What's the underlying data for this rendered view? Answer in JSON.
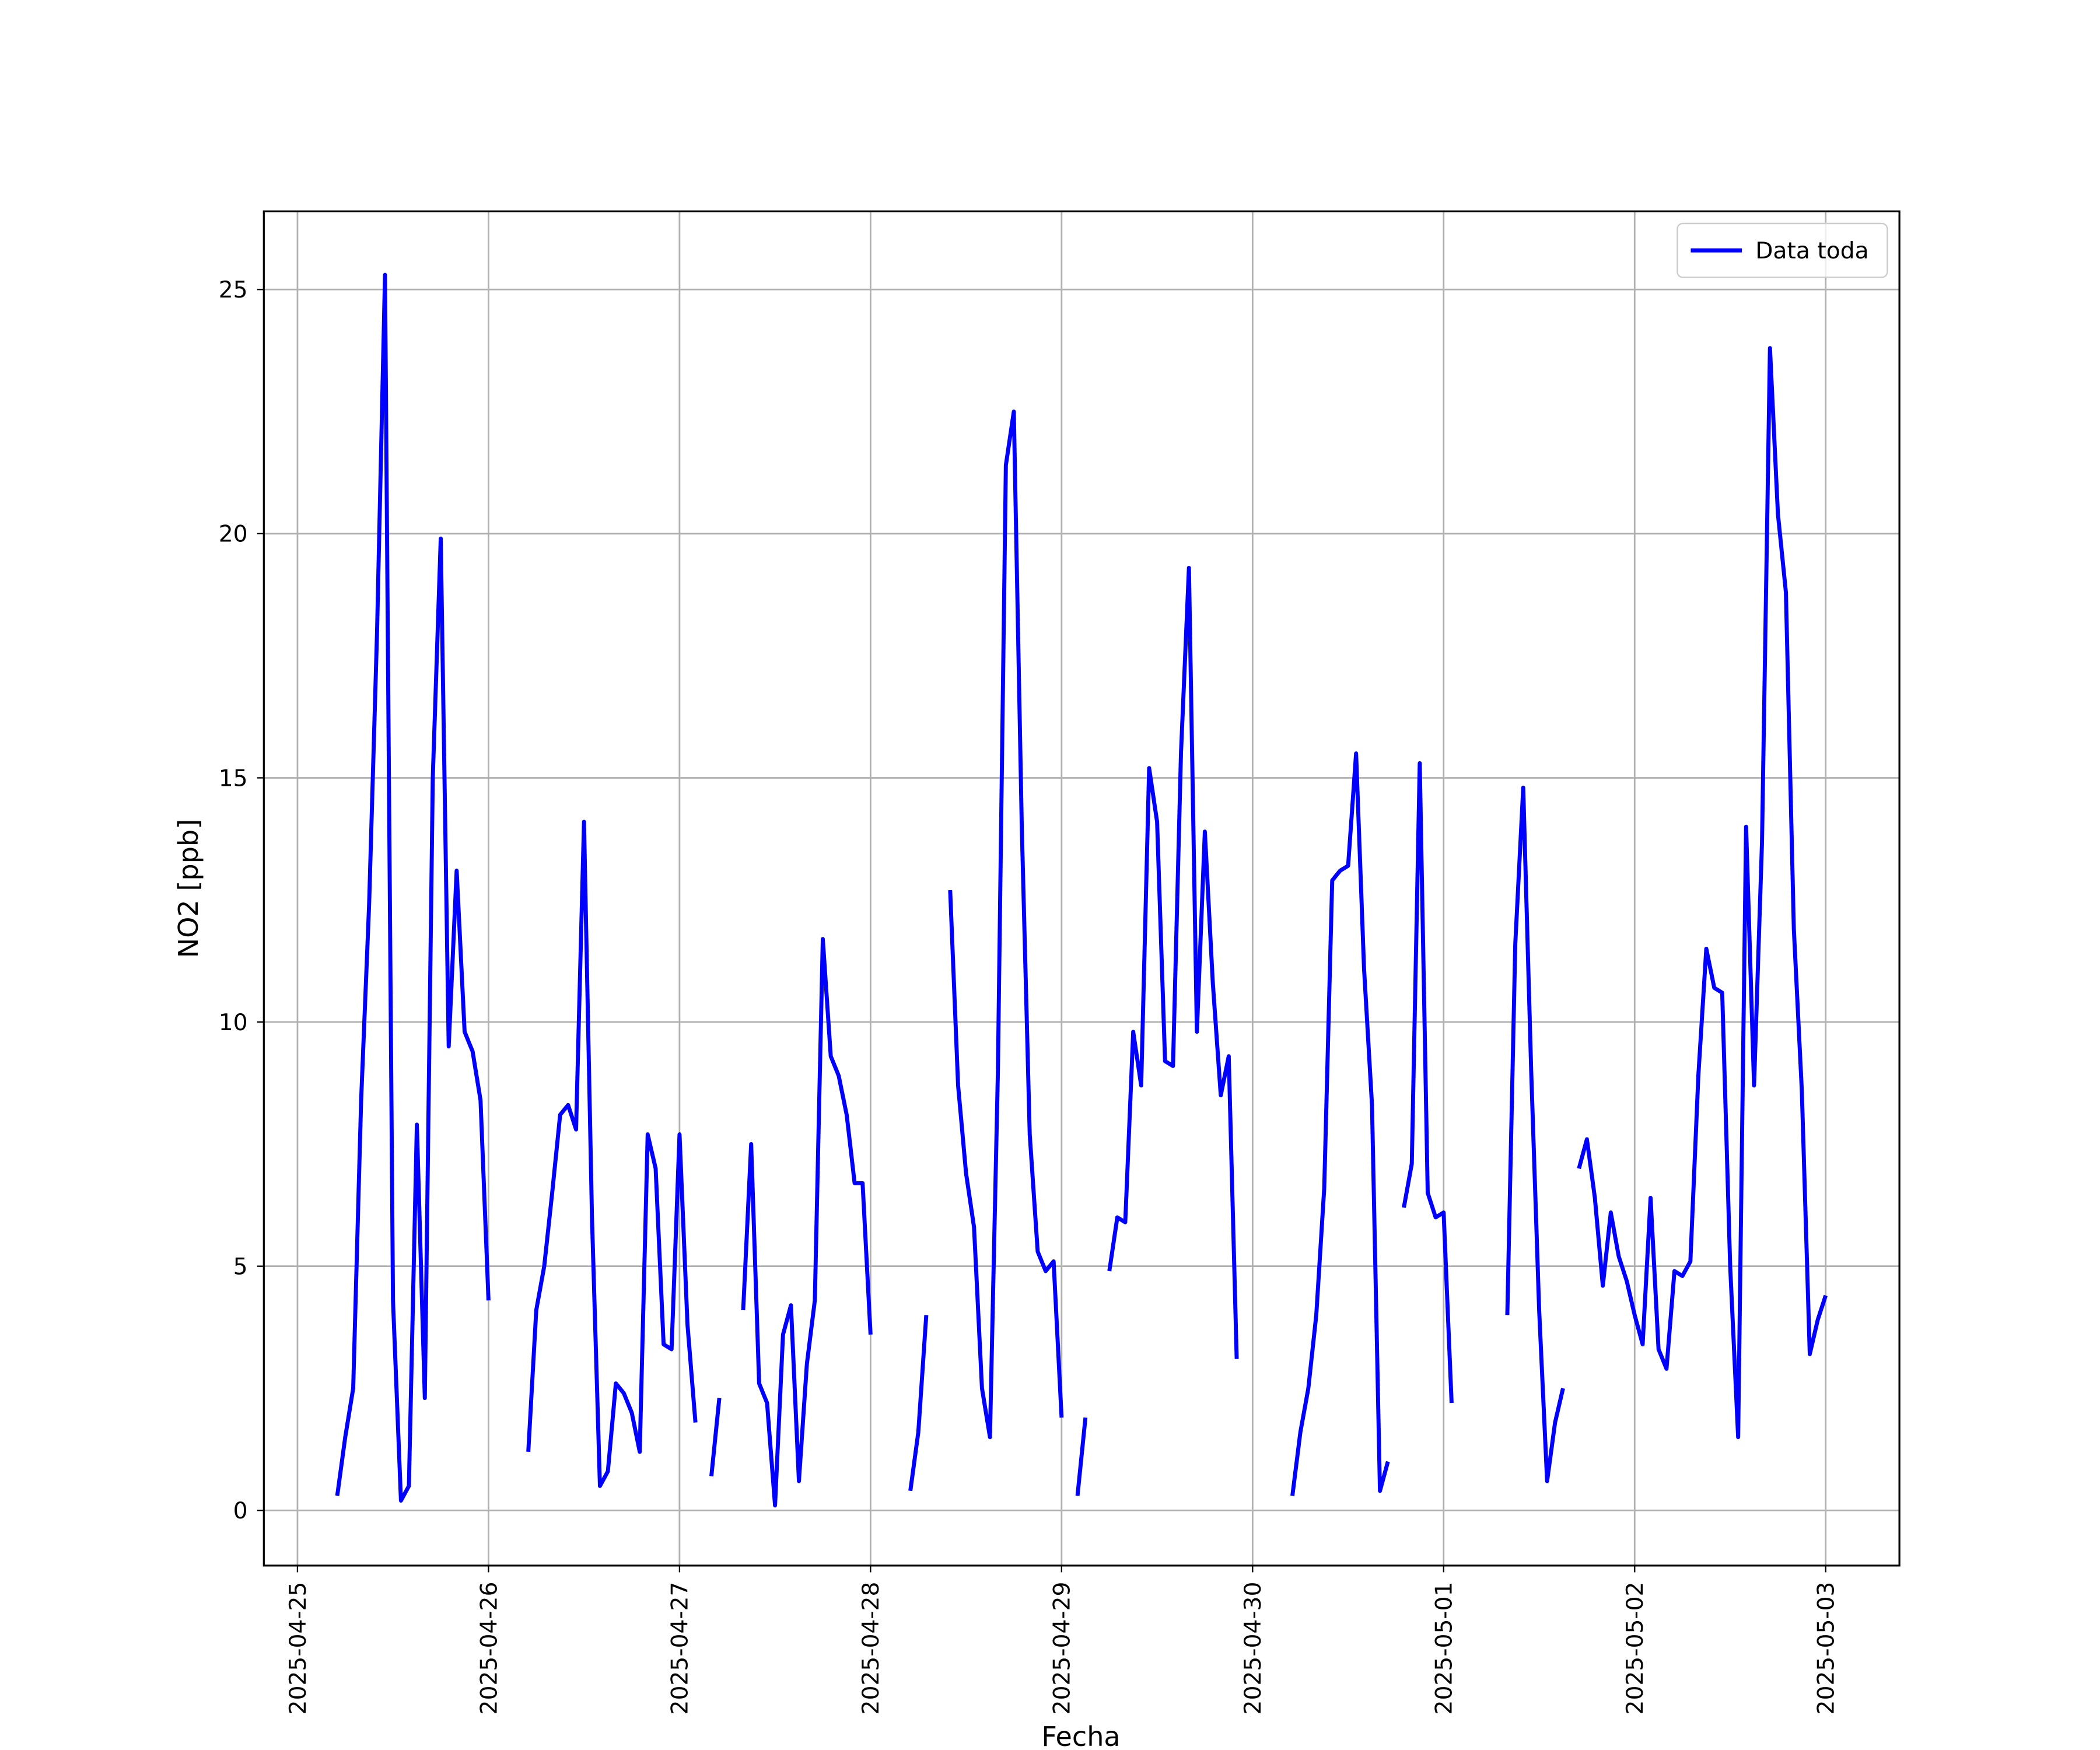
{
  "chart_data": {
    "type": "line",
    "x_label": "Fecha",
    "y_label": "NO2 [ppb]",
    "xlim": [
      20202.824,
      20211.386
    ],
    "ylim": [
      -1.13,
      26.6
    ],
    "xticks": [
      {
        "value": 20203,
        "label": "2025-04-25"
      },
      {
        "value": 20204,
        "label": "2025-04-26"
      },
      {
        "value": 20205,
        "label": "2025-04-27"
      },
      {
        "value": 20206,
        "label": "2025-04-28"
      },
      {
        "value": 20207,
        "label": "2025-04-29"
      },
      {
        "value": 20208,
        "label": "2025-04-30"
      },
      {
        "value": 20209,
        "label": "2025-05-01"
      },
      {
        "value": 20210,
        "label": "2025-05-02"
      },
      {
        "value": 20211,
        "label": "2025-05-03"
      }
    ],
    "yticks": [
      0,
      5,
      10,
      15,
      20,
      25
    ],
    "grid": true,
    "legend": "upper right",
    "x": [
      20203.2083,
      20203.25,
      20203.2917,
      20203.3333,
      20203.375,
      20203.4167,
      20203.4583,
      20203.5,
      20203.5417,
      20203.5833,
      20203.625,
      20203.6667,
      20203.7083,
      20203.75,
      20203.7917,
      20203.8333,
      20203.875,
      20203.9167,
      20203.9583,
      20204,
      20204.0833,
      20204.2083,
      20204.25,
      20204.2917,
      20204.3333,
      20204.375,
      20204.4167,
      20204.4583,
      20204.5,
      20204.5417,
      20204.5833,
      20204.625,
      20204.6667,
      20204.7083,
      20204.75,
      20204.7917,
      20204.8333,
      20204.875,
      20204.9167,
      20204.9583,
      20205,
      20205.0417,
      20205.0833,
      20205.125,
      20205.1667,
      20205.2083,
      20205.25,
      20205.3333,
      20205.375,
      20205.4167,
      20205.4583,
      20205.5,
      20205.5417,
      20205.5833,
      20205.625,
      20205.6667,
      20205.7083,
      20205.75,
      20205.7917,
      20205.8333,
      20205.875,
      20205.9167,
      20205.9583,
      20206,
      20206.125,
      20206.2083,
      20206.25,
      20206.2917,
      20206.3333,
      20206.4167,
      20206.4583,
      20206.5,
      20206.5417,
      20206.5833,
      20206.625,
      20206.6667,
      20206.7083,
      20206.75,
      20206.7917,
      20206.8333,
      20206.875,
      20206.9167,
      20206.9583,
      20207,
      20207.0417,
      20207.0833,
      20207.125,
      20207.1667,
      20207.25,
      20207.2917,
      20207.3333,
      20207.375,
      20207.4167,
      20207.4583,
      20207.5,
      20207.5417,
      20207.5833,
      20207.625,
      20207.6667,
      20207.7083,
      20207.75,
      20207.7917,
      20207.8333,
      20207.875,
      20207.9167,
      20208,
      20208.2083,
      20208.25,
      20208.2917,
      20208.3333,
      20208.375,
      20208.4167,
      20208.4583,
      20208.5,
      20208.5417,
      20208.5833,
      20208.625,
      20208.6667,
      20208.7083,
      20208.75,
      20208.7917,
      20208.8333,
      20208.875,
      20208.9167,
      20208.9583,
      20209,
      20209.0417,
      20209.1667,
      20209.3333,
      20209.375,
      20209.4167,
      20209.4583,
      20209.5,
      20209.5417,
      20209.5833,
      20209.625,
      20209.6667,
      20209.7083,
      20209.75,
      20209.7917,
      20209.8333,
      20209.875,
      20209.9167,
      20209.9583,
      20210,
      20210.0417,
      20210.0833,
      20210.125,
      20210.1667,
      20210.2083,
      20210.25,
      20210.2917,
      20210.3333,
      20210.375,
      20210.4167,
      20210.4583,
      20210.5,
      20210.5417,
      20210.5833,
      20210.625,
      20210.6667,
      20210.7083,
      20210.75,
      20210.7917,
      20210.8333,
      20210.875,
      20210.9167,
      20210.9583,
      20211
    ],
    "series": [
      {
        "name": "Data toda",
        "color": "#0000ff",
        "values": [
          0.3,
          1.5,
          2.5,
          8.4,
          12.4,
          18,
          25.3,
          4.3,
          0.2,
          0.5,
          7.9,
          2.3,
          15,
          19.9,
          9.5,
          13.1,
          9.8,
          9.4,
          8.4,
          4.3,
          null,
          1.2,
          4.1,
          5.0,
          6.5,
          8.1,
          8.3,
          7.8,
          14.1,
          6.0,
          0.5,
          0.8,
          2.6,
          2.4,
          2.0,
          1.2,
          7.7,
          7.0,
          3.4,
          3.3,
          7.7,
          3.8,
          1.8,
          null,
          0.7,
          2.3,
          null,
          4.1,
          7.5,
          2.6,
          2.2,
          0.1,
          3.6,
          4.2,
          0.6,
          3.0,
          4.3,
          11.7,
          9.3,
          8.9,
          8.1,
          6.7,
          6.7,
          3.6,
          null,
          0.4,
          1.6,
          4.0,
          null,
          12.7,
          8.7,
          6.9,
          5.8,
          2.5,
          1.5,
          9.0,
          21.4,
          22.5,
          14,
          7.7,
          5.3,
          4.9,
          5.1,
          1.9,
          null,
          0.3,
          1.9,
          null,
          4.9,
          6.0,
          5.9,
          9.8,
          8.7,
          15.2,
          14.1,
          9.2,
          9.1,
          15.5,
          19.3,
          9.8,
          13.9,
          10.8,
          8.5,
          9.3,
          3.1,
          null,
          0.3,
          1.6,
          2.5,
          4.0,
          6.6,
          12.9,
          13.1,
          13.2,
          15.5,
          11.1,
          8.3,
          0.4,
          1.0,
          null,
          6.2,
          7.1,
          15.3,
          6.5,
          6.0,
          6.1,
          2.2,
          null,
          4.0,
          11.6,
          14.8,
          9.0,
          4.1,
          0.6,
          1.8,
          2.5,
          null,
          7.0,
          7.6,
          6.4,
          4.6,
          6.1,
          5.2,
          4.7,
          4.0,
          3.4,
          6.4,
          3.3,
          2.9,
          4.9,
          4.8,
          5.1,
          8.9,
          11.5,
          10.7,
          10.6,
          5.0,
          1.5,
          14.0,
          8.7,
          13.7,
          23.8,
          20.4,
          18.8,
          11.9,
          8.6,
          3.2,
          3.9,
          4.4
        ]
      }
    ]
  }
}
